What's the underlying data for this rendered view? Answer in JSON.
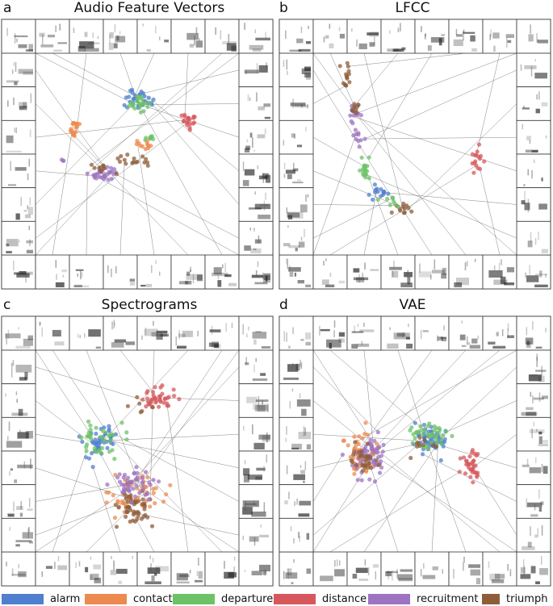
{
  "colors": {
    "alarm": "#4f7fcf",
    "contact": "#ec8a4f",
    "departure": "#6cc266",
    "distance": "#d6585c",
    "recruitment": "#9d74c2",
    "triumph": "#8e5e3b"
  },
  "legend": [
    {
      "label": "alarm",
      "color": "#4f7fcf"
    },
    {
      "label": "contact",
      "color": "#ec8a4f"
    },
    {
      "label": "departure",
      "color": "#6cc266"
    },
    {
      "label": "distance",
      "color": "#d6585c"
    },
    {
      "label": "recruitment",
      "color": "#9d74c2"
    },
    {
      "label": "triumph",
      "color": "#8e5e3b"
    }
  ],
  "panels": [
    {
      "letter": "a",
      "title": "Audio Feature Vectors"
    },
    {
      "letter": "b",
      "title": "LFCC"
    },
    {
      "letter": "c",
      "title": "Spectrograms"
    },
    {
      "letter": "d",
      "title": "VAE"
    }
  ],
  "chart_data": [
    {
      "type": "scatter",
      "title": "Audio Feature Vectors",
      "axes_visible": false,
      "inset_images": "spectrogram thumbnails around border, linked to points",
      "clusters": [
        {
          "category": "alarm",
          "center": [
            0.5,
            0.22
          ],
          "spread": [
            0.06,
            0.04
          ],
          "n": 30
        },
        {
          "category": "departure",
          "center": [
            0.52,
            0.25
          ],
          "spread": [
            0.05,
            0.035
          ],
          "n": 22
        },
        {
          "category": "contact",
          "center": [
            0.19,
            0.37
          ],
          "spread": [
            0.025,
            0.035
          ],
          "n": 18
        },
        {
          "category": "distance",
          "center": [
            0.75,
            0.33
          ],
          "spread": [
            0.04,
            0.03
          ],
          "n": 20
        },
        {
          "category": "departure",
          "center": [
            0.56,
            0.42
          ],
          "spread": [
            0.04,
            0.02
          ],
          "n": 8
        },
        {
          "category": "contact",
          "center": [
            0.54,
            0.45
          ],
          "spread": [
            0.06,
            0.03
          ],
          "n": 12
        },
        {
          "category": "triumph",
          "center": [
            0.5,
            0.52
          ],
          "spread": [
            0.08,
            0.04
          ],
          "n": 16
        },
        {
          "category": "recruitment",
          "center": [
            0.33,
            0.6
          ],
          "spread": [
            0.06,
            0.03
          ],
          "n": 30
        },
        {
          "category": "triumph",
          "center": [
            0.34,
            0.57
          ],
          "spread": [
            0.05,
            0.025
          ],
          "n": 10
        },
        {
          "category": "recruitment",
          "center": [
            0.13,
            0.53
          ],
          "spread": [
            0.01,
            0.01
          ],
          "n": 3
        }
      ]
    },
    {
      "type": "scatter",
      "title": "LFCC",
      "axes_visible": false,
      "inset_images": "spectrogram thumbnails around border, linked to points",
      "clusters": [
        {
          "category": "triumph",
          "center": [
            0.16,
            0.12
          ],
          "spread": [
            0.02,
            0.05
          ],
          "n": 14
        },
        {
          "category": "recruitment",
          "center": [
            0.2,
            0.3
          ],
          "spread": [
            0.025,
            0.04
          ],
          "n": 16
        },
        {
          "category": "triumph",
          "center": [
            0.2,
            0.27
          ],
          "spread": [
            0.02,
            0.03
          ],
          "n": 8
        },
        {
          "category": "recruitment",
          "center": [
            0.22,
            0.42
          ],
          "spread": [
            0.02,
            0.04
          ],
          "n": 10
        },
        {
          "category": "departure",
          "center": [
            0.26,
            0.58
          ],
          "spread": [
            0.03,
            0.05
          ],
          "n": 18
        },
        {
          "category": "alarm",
          "center": [
            0.32,
            0.69
          ],
          "spread": [
            0.04,
            0.04
          ],
          "n": 14
        },
        {
          "category": "triumph",
          "center": [
            0.43,
            0.77
          ],
          "spread": [
            0.05,
            0.02
          ],
          "n": 12
        },
        {
          "category": "departure",
          "center": [
            0.4,
            0.74
          ],
          "spread": [
            0.06,
            0.03
          ],
          "n": 8
        },
        {
          "category": "distance",
          "center": [
            0.81,
            0.52
          ],
          "spread": [
            0.03,
            0.05
          ],
          "n": 16
        }
      ]
    },
    {
      "type": "scatter",
      "title": "Spectrograms",
      "axes_visible": false,
      "inset_images": "spectrogram thumbnails around border, linked to points",
      "clusters": [
        {
          "category": "distance",
          "center": [
            0.61,
            0.24
          ],
          "spread": [
            0.07,
            0.04
          ],
          "n": 40
        },
        {
          "category": "triumph",
          "center": [
            0.5,
            0.28
          ],
          "spread": [
            0.04,
            0.03
          ],
          "n": 6
        },
        {
          "category": "alarm",
          "center": [
            0.32,
            0.46
          ],
          "spread": [
            0.08,
            0.07
          ],
          "n": 45
        },
        {
          "category": "departure",
          "center": [
            0.33,
            0.44
          ],
          "spread": [
            0.09,
            0.08
          ],
          "n": 35
        },
        {
          "category": "contact",
          "center": [
            0.5,
            0.72
          ],
          "spread": [
            0.1,
            0.08
          ],
          "n": 55
        },
        {
          "category": "triumph",
          "center": [
            0.47,
            0.76
          ],
          "spread": [
            0.09,
            0.08
          ],
          "n": 50
        },
        {
          "category": "recruitment",
          "center": [
            0.48,
            0.66
          ],
          "spread": [
            0.09,
            0.07
          ],
          "n": 45
        }
      ]
    },
    {
      "type": "scatter",
      "title": "VAE",
      "axes_visible": false,
      "inset_images": "spectrogram thumbnails around border, linked to points",
      "clusters": [
        {
          "category": "contact",
          "center": [
            0.24,
            0.52
          ],
          "spread": [
            0.07,
            0.08
          ],
          "n": 60
        },
        {
          "category": "recruitment",
          "center": [
            0.27,
            0.52
          ],
          "spread": [
            0.07,
            0.08
          ],
          "n": 55
        },
        {
          "category": "triumph",
          "center": [
            0.24,
            0.53
          ],
          "spread": [
            0.06,
            0.07
          ],
          "n": 30
        },
        {
          "category": "alarm",
          "center": [
            0.58,
            0.45
          ],
          "spread": [
            0.07,
            0.06
          ],
          "n": 50
        },
        {
          "category": "departure",
          "center": [
            0.56,
            0.43
          ],
          "spread": [
            0.07,
            0.06
          ],
          "n": 40
        },
        {
          "category": "distance",
          "center": [
            0.78,
            0.58
          ],
          "spread": [
            0.04,
            0.06
          ],
          "n": 35
        },
        {
          "category": "triumph",
          "center": [
            0.54,
            0.48
          ],
          "spread": [
            0.05,
            0.05
          ],
          "n": 10
        }
      ]
    }
  ]
}
